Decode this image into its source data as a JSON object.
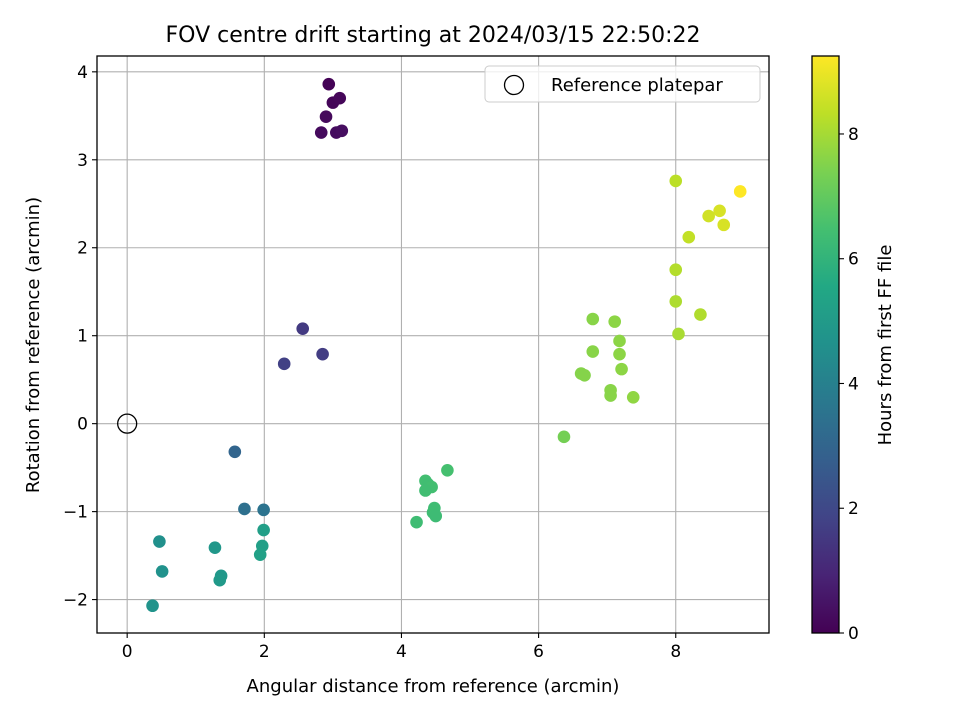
{
  "chart_data": {
    "type": "scatter",
    "title": "FOV centre drift starting at 2024/03/15 22:50:22",
    "xlabel": "Angular distance from reference (arcmin)",
    "ylabel": "Rotation from reference (arcmin)",
    "xlim": [
      -0.44,
      9.36
    ],
    "ylim": [
      -2.38,
      4.18
    ],
    "xticks": [
      0,
      2,
      4,
      6,
      8
    ],
    "xtick_labels": [
      "0",
      "2",
      "4",
      "6",
      "8"
    ],
    "yticks": [
      -2,
      -1,
      0,
      1,
      2,
      3,
      4
    ],
    "ytick_labels": [
      "−2",
      "−1",
      "0",
      "1",
      "2",
      "3",
      "4"
    ],
    "grid": true,
    "legend": {
      "placement": "top-right",
      "entries": [
        "Reference platepar"
      ]
    },
    "reference_point": {
      "x": 0,
      "y": 0,
      "label": "Reference platepar"
    },
    "colorbar": {
      "label": "Hours from first FF file",
      "range": [
        0,
        9.25
      ],
      "ticks": [
        0,
        2,
        4,
        6,
        8
      ],
      "tick_labels": [
        "0",
        "2",
        "4",
        "6",
        "8"
      ],
      "colormap": "viridis"
    },
    "points": [
      {
        "x": 2.94,
        "y": 3.86,
        "c": 0.05
      },
      {
        "x": 3.0,
        "y": 3.65,
        "c": 0.1
      },
      {
        "x": 3.1,
        "y": 3.7,
        "c": 0.15
      },
      {
        "x": 2.9,
        "y": 3.49,
        "c": 0.2
      },
      {
        "x": 2.83,
        "y": 3.31,
        "c": 0.25
      },
      {
        "x": 3.05,
        "y": 3.31,
        "c": 0.3
      },
      {
        "x": 3.13,
        "y": 3.33,
        "c": 0.35
      },
      {
        "x": 2.56,
        "y": 1.08,
        "c": 1.55
      },
      {
        "x": 2.85,
        "y": 0.79,
        "c": 1.65
      },
      {
        "x": 2.29,
        "y": 0.68,
        "c": 1.75
      },
      {
        "x": 1.57,
        "y": -0.32,
        "c": 3.0
      },
      {
        "x": 1.71,
        "y": -0.97,
        "c": 3.4
      },
      {
        "x": 1.99,
        "y": -0.98,
        "c": 3.5
      },
      {
        "x": 0.47,
        "y": -1.34,
        "c": 4.6
      },
      {
        "x": 0.51,
        "y": -1.68,
        "c": 4.65
      },
      {
        "x": 0.37,
        "y": -2.07,
        "c": 4.7
      },
      {
        "x": 1.28,
        "y": -1.41,
        "c": 4.85
      },
      {
        "x": 1.37,
        "y": -1.73,
        "c": 4.9
      },
      {
        "x": 1.35,
        "y": -1.78,
        "c": 4.95
      },
      {
        "x": 1.99,
        "y": -1.21,
        "c": 5.15
      },
      {
        "x": 1.97,
        "y": -1.39,
        "c": 5.2
      },
      {
        "x": 1.94,
        "y": -1.49,
        "c": 5.25
      },
      {
        "x": 4.67,
        "y": -0.53,
        "c": 6.5
      },
      {
        "x": 4.35,
        "y": -0.65,
        "c": 6.45
      },
      {
        "x": 4.39,
        "y": -0.69,
        "c": 6.4
      },
      {
        "x": 4.44,
        "y": -0.72,
        "c": 6.45
      },
      {
        "x": 4.35,
        "y": -0.76,
        "c": 6.4
      },
      {
        "x": 4.48,
        "y": -0.96,
        "c": 6.35
      },
      {
        "x": 4.46,
        "y": -1.01,
        "c": 6.35
      },
      {
        "x": 4.5,
        "y": -1.05,
        "c": 6.3
      },
      {
        "x": 4.22,
        "y": -1.12,
        "c": 6.35
      },
      {
        "x": 6.37,
        "y": -0.15,
        "c": 7.3
      },
      {
        "x": 6.79,
        "y": 1.19,
        "c": 7.6
      },
      {
        "x": 7.11,
        "y": 1.16,
        "c": 7.65
      },
      {
        "x": 7.18,
        "y": 0.94,
        "c": 7.65
      },
      {
        "x": 6.79,
        "y": 0.82,
        "c": 7.6
      },
      {
        "x": 7.18,
        "y": 0.79,
        "c": 7.65
      },
      {
        "x": 7.21,
        "y": 0.62,
        "c": 7.65
      },
      {
        "x": 6.62,
        "y": 0.57,
        "c": 7.55
      },
      {
        "x": 6.67,
        "y": 0.55,
        "c": 7.55
      },
      {
        "x": 7.05,
        "y": 0.38,
        "c": 7.6
      },
      {
        "x": 7.05,
        "y": 0.32,
        "c": 7.6
      },
      {
        "x": 7.38,
        "y": 0.3,
        "c": 7.7
      },
      {
        "x": 8.0,
        "y": 2.76,
        "c": 8.3
      },
      {
        "x": 8.94,
        "y": 2.64,
        "c": 9.25
      },
      {
        "x": 8.64,
        "y": 2.42,
        "c": 8.7
      },
      {
        "x": 8.48,
        "y": 2.36,
        "c": 8.6
      },
      {
        "x": 8.7,
        "y": 2.26,
        "c": 8.7
      },
      {
        "x": 8.19,
        "y": 2.12,
        "c": 8.4
      },
      {
        "x": 8.0,
        "y": 1.75,
        "c": 8.2
      },
      {
        "x": 8.0,
        "y": 1.39,
        "c": 8.1
      },
      {
        "x": 8.36,
        "y": 1.24,
        "c": 8.15
      },
      {
        "x": 8.04,
        "y": 1.02,
        "c": 8.05
      }
    ]
  }
}
